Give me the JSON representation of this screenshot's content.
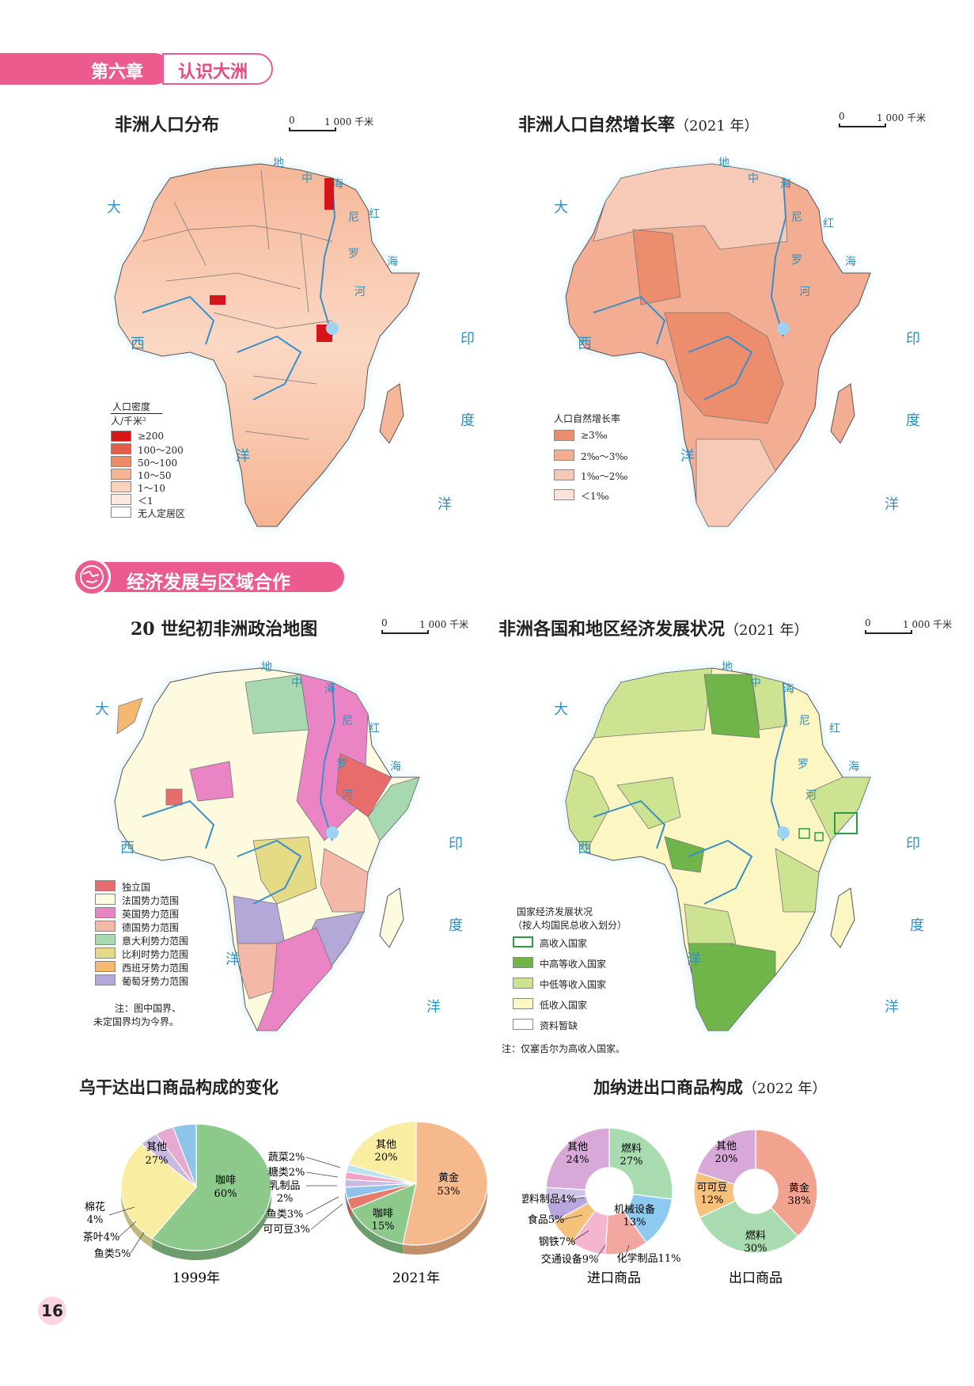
{
  "chapter": {
    "number": "第六章",
    "name": "认识大洲"
  },
  "scale": {
    "zero": "0",
    "distance": "1 000 千米"
  },
  "oceans": {
    "atlantic_1": "大",
    "atlantic_2": "西",
    "atlantic_3": "洋",
    "indian_1": "印",
    "indian_2": "度",
    "indian_3": "洋",
    "med_1": "地",
    "med_2": "中",
    "med_3": "海",
    "red_1": "红",
    "red_2": "海",
    "nile_1": "尼",
    "nile_2": "罗",
    "nile_3": "河"
  },
  "map1": {
    "title": "非洲人口分布",
    "legend_title": "人口密度",
    "legend_unit": "人/千米²",
    "legend": [
      {
        "label": "≥200",
        "color": "#d7141a"
      },
      {
        "label": "100～200",
        "color": "#e55d4a"
      },
      {
        "label": "50～100",
        "color": "#ee8a6a"
      },
      {
        "label": "10～50",
        "color": "#f5b494"
      },
      {
        "label": "1～10",
        "color": "#fad2bd"
      },
      {
        "label": "＜1",
        "color": "#fde9dd"
      },
      {
        "label": "无人定居区",
        "color": "#ffffff"
      }
    ]
  },
  "map2": {
    "title": "非洲人口自然增长率",
    "year": "（2021 年）",
    "legend_title": "人口自然增长率",
    "legend": [
      {
        "label": "≥3‰",
        "color": "#ec8d6e"
      },
      {
        "label": "2‰～3‰",
        "color": "#f3ad93"
      },
      {
        "label": "1‰～2‰",
        "color": "#f7c9b7"
      },
      {
        "label": "＜1‰",
        "color": "#fbe3d9"
      }
    ]
  },
  "section": {
    "title": "经济发展与区域合作"
  },
  "map3": {
    "title": "20 世纪初非洲政治地图",
    "legend": [
      {
        "label": "独立国",
        "color": "#e86c6c"
      },
      {
        "label": "法国势力范围",
        "color": "#fdfadf"
      },
      {
        "label": "英国势力范围",
        "color": "#ea84c4"
      },
      {
        "label": "德国势力范围",
        "color": "#f4b8a8"
      },
      {
        "label": "意大利势力范围",
        "color": "#a8d8b0"
      },
      {
        "label": "比利时势力范围",
        "color": "#e5da86"
      },
      {
        "label": "西班牙势力范围",
        "color": "#f4b870"
      },
      {
        "label": "葡萄牙势力范围",
        "color": "#b3a8d8"
      }
    ],
    "note_1": "注：图中国界、",
    "note_2": "未定国界均为今界。"
  },
  "map4": {
    "title": "非洲各国和地区经济发展状况",
    "year": "（2021 年）",
    "legend_title_1": "国家经济发展状况",
    "legend_title_2": "（按人均国民总收入划分）",
    "legend": [
      {
        "label": "高收入国家",
        "color": "#ffffff",
        "border": "#2e9a46"
      },
      {
        "label": "中高等收入国家",
        "color": "#6fb54a",
        "border": "#888888"
      },
      {
        "label": "中低等收入国家",
        "color": "#cde391",
        "border": "#888888"
      },
      {
        "label": "低收入国家",
        "color": "#fbf6c2",
        "border": "#888888"
      },
      {
        "label": "资料暂缺",
        "color": "#ffffff",
        "border": "#888888"
      }
    ],
    "note": "注：仅塞舌尔为高收入国家。"
  },
  "uganda": {
    "title": "乌干达出口商品构成的变化",
    "y1999": "1999年",
    "y2021": "2021年",
    "labels_1999": {
      "coffee": "咖啡",
      "coffee_pct": "60%",
      "other": "其他",
      "other_pct": "27%",
      "cotton": "棉花",
      "cotton_pct": "4%",
      "tea": "茶叶4%",
      "fish": "鱼类5%"
    },
    "labels_2021": {
      "gold": "黄金",
      "gold_pct": "53%",
      "other": "其他",
      "other_pct": "20%",
      "coffee": "咖啡",
      "coffee_pct": "15%",
      "veg": "蔬菜2%",
      "sugar": "糖类2%",
      "dairy": "乳制品",
      "dairy_pct": "2%",
      "fish": "鱼类3%",
      "cocoa": "可可豆3%"
    }
  },
  "ghana": {
    "title": "加纳进出口商品构成",
    "year": "（2022 年）",
    "import_caption": "进口商品",
    "export_caption": "出口商品",
    "import_labels": {
      "fuel": "燃料",
      "fuel_pct": "27%",
      "machinery": "机械设备",
      "machinery_pct": "13%",
      "chemical": "化学制品11%",
      "transport": "交通设备9%",
      "steel": "钢铁7%",
      "food": "食品5%",
      "plastic": "塑料制品4%",
      "other": "其他",
      "other_pct": "24%"
    },
    "export_labels": {
      "gold": "黄金",
      "gold_pct": "38%",
      "fuel": "燃料",
      "fuel_pct": "30%",
      "cocoa": "可可豆",
      "cocoa_pct": "12%",
      "other": "其他",
      "other_pct": "20%"
    }
  },
  "chart_data": [
    {
      "type": "pie",
      "title": "乌干达出口商品构成的变化",
      "subtitle": "1999年",
      "categories": [
        "咖啡",
        "其他",
        "棉花",
        "茶叶",
        "鱼类"
      ],
      "values": [
        60,
        27,
        4,
        4,
        5
      ],
      "colors": [
        "#8cc98a",
        "#f8eda0",
        "#c9b8e0",
        "#e8a9d0",
        "#8ec3ea"
      ]
    },
    {
      "type": "pie",
      "title": "乌干达出口商品构成的变化",
      "subtitle": "2021年",
      "categories": [
        "黄金",
        "咖啡",
        "可可豆",
        "鱼类",
        "乳制品",
        "糖类",
        "蔬菜",
        "其他"
      ],
      "values": [
        53,
        15,
        3,
        3,
        2,
        2,
        2,
        20
      ],
      "colors": [
        "#f6b98c",
        "#8cc98a",
        "#e77b6b",
        "#8ec3ea",
        "#c9b8e0",
        "#f0a5c8",
        "#b9e3f0",
        "#f8eda0"
      ]
    },
    {
      "type": "pie",
      "title": "加纳进出口商品构成",
      "subtitle": "进口商品",
      "categories": [
        "燃料",
        "机械设备",
        "化学制品",
        "交通设备",
        "钢铁",
        "食品",
        "塑料制品",
        "其他"
      ],
      "values": [
        27,
        13,
        11,
        9,
        7,
        5,
        4,
        24
      ],
      "colors": [
        "#a9dbb0",
        "#8ec9ef",
        "#f2a7a0",
        "#f4b6cf",
        "#f6c17a",
        "#b8a6dd",
        "#cfc2e8",
        "#d8a8d8"
      ]
    },
    {
      "type": "pie",
      "title": "加纳进出口商品构成",
      "subtitle": "出口商品",
      "categories": [
        "黄金",
        "燃料",
        "可可豆",
        "其他"
      ],
      "values": [
        38,
        30,
        12,
        20
      ],
      "colors": [
        "#f2a38f",
        "#a9dbb0",
        "#f6c17a",
        "#d8a8d8"
      ]
    }
  ],
  "page": {
    "number": "16"
  }
}
